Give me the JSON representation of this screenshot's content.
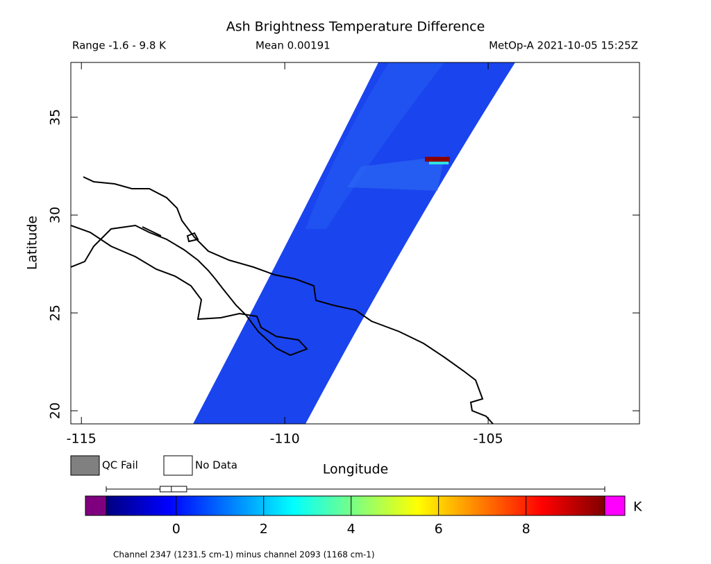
{
  "chart_data": {
    "type": "map",
    "title": "Ash Brightness Temperature Difference",
    "subtitle_left": "Range -1.6 - 9.8 K",
    "subtitle_center": "Mean 0.00191",
    "subtitle_right": "MetOp-A 2021-10-05 15:25Z",
    "xlabel": "Longitude",
    "ylabel": "Latitude",
    "xlim": [
      -115.26,
      -101.28
    ],
    "ylim": [
      19.33,
      37.8
    ],
    "xticks": [
      -115,
      -110,
      -105
    ],
    "yticks": [
      20,
      25,
      30,
      35
    ],
    "legend": [
      {
        "name": "QC Fail",
        "color": "#808080"
      },
      {
        "name": "No Data",
        "color": "#ffffff"
      }
    ],
    "colorbar": {
      "clim": [
        -1.6,
        9.8
      ],
      "ticks": [
        0,
        2,
        4,
        6,
        8
      ],
      "unit": "K",
      "colors": [
        "#00007f",
        "#0000ff",
        "#007fff",
        "#00ffff",
        "#7fff7f",
        "#ffff00",
        "#ff7f00",
        "#ff0000",
        "#7f0000"
      ],
      "under_color": "#7f007f",
      "over_color": "#ff00ff"
    },
    "boxplot": {
      "whisker_low": -1.6,
      "q1": -0.37,
      "median": -0.11,
      "q3": 0.24,
      "whisker_high": 9.8
    },
    "footnote": "Channel 2347 (1231.5 cm-1) minus channel 2093 (1168 cm-1)"
  }
}
